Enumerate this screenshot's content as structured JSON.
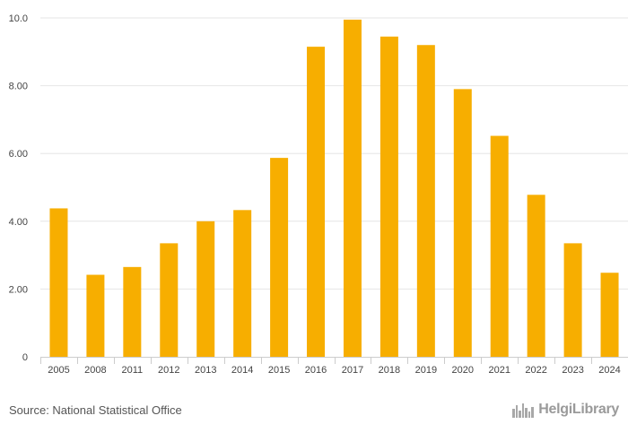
{
  "chart_data": {
    "type": "bar",
    "title": "",
    "xlabel": "",
    "ylabel": "",
    "categories": [
      "2005",
      "2008",
      "2011",
      "2012",
      "2013",
      "2014",
      "2015",
      "2016",
      "2017",
      "2018",
      "2019",
      "2020",
      "2021",
      "2022",
      "2023",
      "2024"
    ],
    "values": [
      4.38,
      2.42,
      2.65,
      3.35,
      4.0,
      4.33,
      5.87,
      9.15,
      9.95,
      9.45,
      9.2,
      7.9,
      6.52,
      4.78,
      3.35,
      2.48
    ],
    "ylim": [
      0,
      10
    ],
    "yticks": [
      0,
      2,
      4,
      6,
      8,
      10
    ],
    "ytick_labels": [
      "0",
      "2.00",
      "4.00",
      "6.00",
      "8.00",
      "10.0"
    ],
    "bar_color": "#f7ae00",
    "grid": true
  },
  "footer": {
    "source": "Source: National Statistical Office",
    "brand": "HelgiLibrary"
  }
}
